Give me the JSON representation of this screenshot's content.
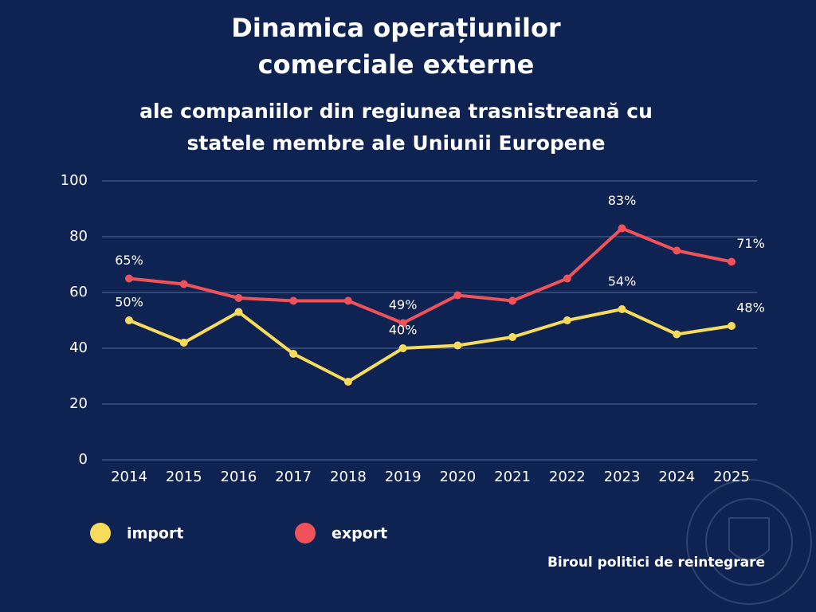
{
  "chart_data": {
    "type": "line",
    "title": "Dinamica operațiunilor comerciale externe",
    "subtitle": "ale companiilor din regiunea trasnistreană cu statele membre ale Uniunii Europene",
    "source": "Biroul politici de reintegrare",
    "categories": [
      "2014",
      "2015",
      "2016",
      "2017",
      "2018",
      "2019",
      "2020",
      "2021",
      "2022",
      "2023",
      "2024",
      "2025"
    ],
    "series": [
      {
        "name": "import",
        "color": "#f7dc5c",
        "values": [
          50,
          42,
          53,
          38,
          28,
          40,
          41,
          44,
          50,
          54,
          45,
          48
        ],
        "value_labels": [
          "50%",
          null,
          null,
          null,
          null,
          "40%",
          null,
          null,
          null,
          "54%",
          null,
          "48%"
        ]
      },
      {
        "name": "export",
        "color": "#f0525a",
        "values": [
          65,
          63,
          58,
          57,
          57,
          49,
          59,
          57,
          65,
          83,
          75,
          71
        ],
        "value_labels": [
          "65%",
          null,
          null,
          null,
          null,
          "49%",
          null,
          null,
          null,
          "83%",
          null,
          "71%"
        ]
      }
    ],
    "ylim": [
      0,
      100
    ],
    "yticks": [
      0,
      20,
      40,
      60,
      80,
      100
    ],
    "grid": true
  }
}
